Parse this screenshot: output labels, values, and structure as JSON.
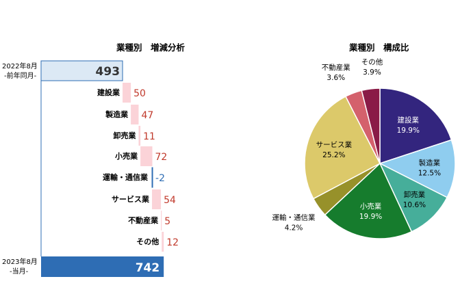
{
  "waterfall": {
    "title": "業種別　増減分析",
    "start": {
      "label_line1": "2022年8月",
      "label_line2": "-前年同月-",
      "value": 493
    },
    "end": {
      "label_line1": "2023年8月",
      "label_line2": "-当月-",
      "value": 742
    },
    "colors": {
      "start_fill": "#dce9f5",
      "start_stroke": "#2e6db4",
      "end_fill": "#2e6db4",
      "pos_fill": "#fbd3d8",
      "neg_stroke": "#2e6db4",
      "pos_text": "#c0392b",
      "neg_text": "#2e6db4"
    }
  },
  "pie": {
    "title": "業種別　構成比"
  },
  "chart_data": [
    {
      "type": "bar",
      "subtype": "waterfall",
      "title": "業種別　増減分析",
      "categories": [
        "2022年8月 -前年同月-",
        "建設業",
        "製造業",
        "卸売業",
        "小売業",
        "運輸・通信業",
        "サービス業",
        "不動産業",
        "その他",
        "2023年8月 -当月-"
      ],
      "values": [
        493,
        50,
        47,
        11,
        72,
        -2,
        54,
        5,
        12,
        742
      ],
      "value_labels": [
        "493",
        "50",
        "47",
        "11",
        "72",
        "-2",
        "54",
        "5",
        "12",
        "742"
      ]
    },
    {
      "type": "pie",
      "title": "業種別　構成比",
      "categories": [
        "建設業",
        "製造業",
        "卸売業",
        "小売業",
        "運輸・通信業",
        "サービス業",
        "不動産業",
        "その他"
      ],
      "values": [
        19.9,
        12.5,
        10.6,
        19.9,
        4.2,
        25.2,
        3.6,
        3.9
      ],
      "value_labels": [
        "19.9%",
        "12.5%",
        "10.6%",
        "19.9%",
        "4.2%",
        "25.2%",
        "3.6%",
        "3.9%"
      ],
      "colors": [
        "#33257e",
        "#8fcdef",
        "#46ae9a",
        "#167c2d",
        "#97912a",
        "#dcc96a",
        "#d4616c",
        "#8a1b47"
      ]
    }
  ]
}
